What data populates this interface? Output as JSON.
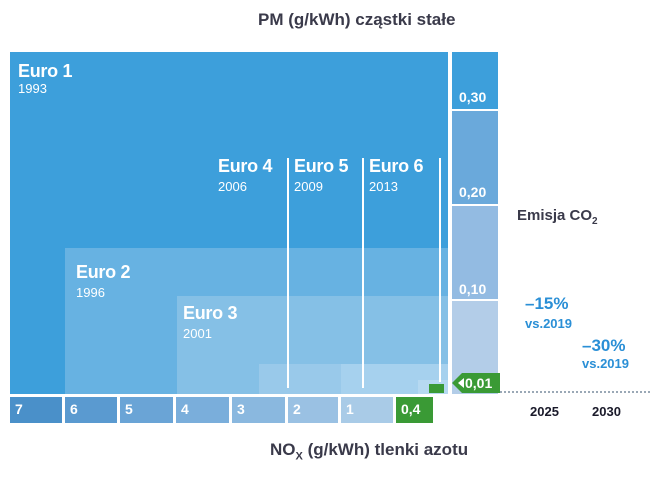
{
  "titles": {
    "pm": "PM (g/kWh) cząstki stałe",
    "nox_prefix": "NO",
    "nox_sub": "X",
    "nox_suffix": " (g/kWh) tlenki azotu"
  },
  "euro": [
    {
      "name": "Euro 1",
      "year": "1993"
    },
    {
      "name": "Euro 2",
      "year": "1996"
    },
    {
      "name": "Euro 3",
      "year": "2001"
    },
    {
      "name": "Euro 4",
      "year": "2006"
    },
    {
      "name": "Euro 5",
      "year": "2009"
    },
    {
      "name": "Euro 6",
      "year": "2013"
    }
  ],
  "pm_axis": [
    "0,30",
    "0,20",
    "0,10",
    "0,01"
  ],
  "nox_axis": [
    "7",
    "6",
    "5",
    "4",
    "3",
    "2",
    "1",
    "0,4"
  ],
  "co2": {
    "label_prefix": "Emisja CO",
    "label_sub": "2",
    "reductions": [
      {
        "pct": "–15%",
        "vs": "vs.2019",
        "year": "2025"
      },
      {
        "pct": "–30%",
        "vs": "vs.2019",
        "year": "2030"
      }
    ]
  },
  "colors": {
    "euro1": "#3d9fdb",
    "euro2": "#67b2e2",
    "euro3": "#85c0e6",
    "euro456": "#a6d1ee",
    "green": "#3a9a35",
    "pm_dark": "#3d9fdb",
    "pm_light": "#b3cde8",
    "percent": "#2a8fd6"
  }
}
